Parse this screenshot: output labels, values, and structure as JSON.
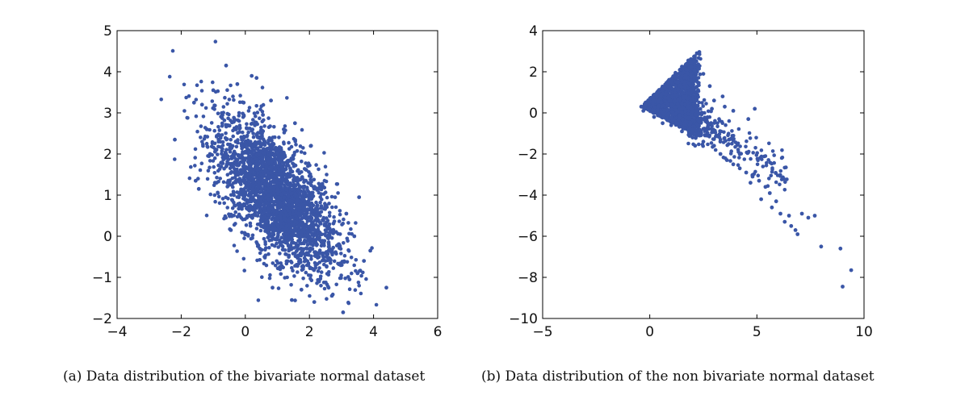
{
  "chart_data": [
    {
      "type": "scatter",
      "title": "",
      "xlabel": "",
      "ylabel": "",
      "xlim": [
        -4,
        6
      ],
      "ylim": [
        -2,
        5
      ],
      "xticks": [
        -4,
        -2,
        0,
        2,
        4,
        6
      ],
      "yticks": [
        -2,
        -1,
        0,
        1,
        2,
        3,
        4,
        5
      ],
      "xtick_labels": [
        "−4",
        "−2",
        "0",
        "2",
        "4",
        "6"
      ],
      "ytick_labels": [
        "−2",
        "−1",
        "0",
        "1",
        "2",
        "3",
        "4",
        "5"
      ],
      "grid": false,
      "color": "#3a56a7",
      "series": [
        {
          "values": [
            [
              -2.2,
              2.35
            ],
            [
              -1.6,
              3.25
            ],
            [
              -1.55,
              1.35
            ],
            [
              -1.45,
              1.15
            ],
            [
              -1.35,
              3.2
            ],
            [
              -1.2,
              2.6
            ],
            [
              -1.1,
              2.0
            ],
            [
              -1.0,
              3.55
            ],
            [
              -0.9,
              1.3
            ],
            [
              -0.8,
              2.45
            ],
            [
              -0.6,
              4.15
            ],
            [
              -0.55,
              1.95
            ],
            [
              -0.45,
              0.15
            ],
            [
              -0.35,
              2.8
            ],
            [
              -0.25,
              3.7
            ],
            [
              -0.15,
              1.05
            ],
            [
              -0.05,
              3.25
            ],
            [
              0.05,
              0.45
            ],
            [
              0.2,
              3.9
            ],
            [
              0.35,
              3.85
            ],
            [
              0.45,
              -0.3
            ],
            [
              0.55,
              2.95
            ],
            [
              0.6,
              1.6
            ],
            [
              0.7,
              0.2
            ],
            [
              0.8,
              3.3
            ],
            [
              0.85,
              -1.25
            ],
            [
              0.95,
              2.15
            ],
            [
              1.05,
              0.95
            ],
            [
              1.15,
              -0.75
            ],
            [
              1.2,
              2.6
            ],
            [
              1.3,
              0.05
            ],
            [
              1.4,
              1.65
            ],
            [
              1.45,
              -1.55
            ],
            [
              1.55,
              2.75
            ],
            [
              1.65,
              0.55
            ],
            [
              1.75,
              -1.3
            ],
            [
              1.85,
              1.35
            ],
            [
              1.95,
              -0.45
            ],
            [
              2.05,
              2.2
            ],
            [
              2.15,
              -1.6
            ],
            [
              2.25,
              0.75
            ],
            [
              2.3,
              -1.1
            ],
            [
              2.4,
              1.25
            ],
            [
              2.5,
              -0.6
            ],
            [
              2.6,
              0.25
            ],
            [
              2.7,
              -1.45
            ],
            [
              2.8,
              0.95
            ],
            [
              2.95,
              -0.25
            ],
            [
              3.05,
              -1.85
            ],
            [
              3.15,
              0.55
            ],
            [
              3.25,
              -1.05
            ],
            [
              3.4,
              0.0
            ],
            [
              3.5,
              -0.9
            ],
            [
              3.55,
              0.95
            ],
            [
              3.7,
              -0.6
            ],
            [
              3.9,
              -0.35
            ],
            [
              4.4,
              -1.25
            ],
            [
              0.4,
              1.2
            ],
            [
              0.9,
              0.6
            ],
            [
              1.5,
              0.3
            ],
            [
              0.1,
              1.9
            ],
            [
              -0.3,
              2.3
            ],
            [
              1.1,
              1.5
            ],
            [
              0.6,
              -0.5
            ],
            [
              1.8,
              -0.8
            ]
          ]
        }
      ],
      "caption": "(a) Data distribution of the bivariate normal dataset"
    },
    {
      "type": "scatter",
      "title": "",
      "xlabel": "",
      "ylabel": "",
      "xlim": [
        -5,
        10
      ],
      "ylim": [
        -10,
        4
      ],
      "xticks": [
        -5,
        0,
        5,
        10
      ],
      "yticks": [
        -10,
        -8,
        -6,
        -4,
        -2,
        0,
        2,
        4
      ],
      "xtick_labels": [
        "−5",
        "0",
        "5",
        "10"
      ],
      "ytick_labels": [
        "−10",
        "−8",
        "−6",
        "−4",
        "−2",
        "0",
        "2",
        "4"
      ],
      "grid": false,
      "color": "#3a56a7",
      "series": [
        {
          "values": [
            [
              -0.4,
              0.3
            ],
            [
              -0.3,
              0.1
            ],
            [
              0.0,
              0.55
            ],
            [
              0.3,
              0.9
            ],
            [
              0.6,
              1.25
            ],
            [
              0.9,
              1.6
            ],
            [
              1.2,
              1.95
            ],
            [
              1.5,
              2.25
            ],
            [
              1.8,
              2.55
            ],
            [
              2.2,
              2.9
            ],
            [
              2.5,
              1.9
            ],
            [
              2.8,
              1.3
            ],
            [
              3.0,
              0.6
            ],
            [
              3.5,
              0.3
            ],
            [
              3.9,
              0.1
            ],
            [
              0.2,
              -0.2
            ],
            [
              0.6,
              -0.5
            ],
            [
              1.0,
              -0.6
            ],
            [
              1.5,
              -0.9
            ],
            [
              2.0,
              -1.2
            ],
            [
              2.5,
              -1.4
            ],
            [
              3.0,
              -1.6
            ],
            [
              3.3,
              -2.0
            ],
            [
              3.6,
              -2.3
            ],
            [
              3.9,
              -2.5
            ],
            [
              4.2,
              -2.7
            ],
            [
              4.5,
              -2.9
            ],
            [
              4.8,
              -3.1
            ],
            [
              5.1,
              -3.3
            ],
            [
              5.4,
              -3.6
            ],
            [
              5.6,
              -3.9
            ],
            [
              5.9,
              -4.3
            ],
            [
              6.1,
              -4.9
            ],
            [
              6.3,
              -5.3
            ],
            [
              6.6,
              -5.5
            ],
            [
              6.9,
              -5.9
            ],
            [
              7.1,
              -4.9
            ],
            [
              7.4,
              -5.1
            ],
            [
              7.7,
              -5.0
            ],
            [
              8.0,
              -6.5
            ],
            [
              6.5,
              -5.0
            ],
            [
              5.7,
              -4.6
            ],
            [
              4.7,
              -3.4
            ],
            [
              4.2,
              -2.0
            ],
            [
              3.7,
              -1.3
            ],
            [
              4.6,
              -0.3
            ],
            [
              4.9,
              0.2
            ],
            [
              3.4,
              0.8
            ],
            [
              2.9,
              0.2
            ],
            [
              2.3,
              -0.4
            ],
            [
              8.9,
              -6.6
            ],
            [
              9.0,
              -8.45
            ],
            [
              9.4,
              -7.65
            ],
            [
              6.8,
              -5.7
            ],
            [
              5.2,
              -4.2
            ]
          ]
        }
      ],
      "caption": "(b) Data distribution of the non bivariate normal dataset"
    }
  ]
}
